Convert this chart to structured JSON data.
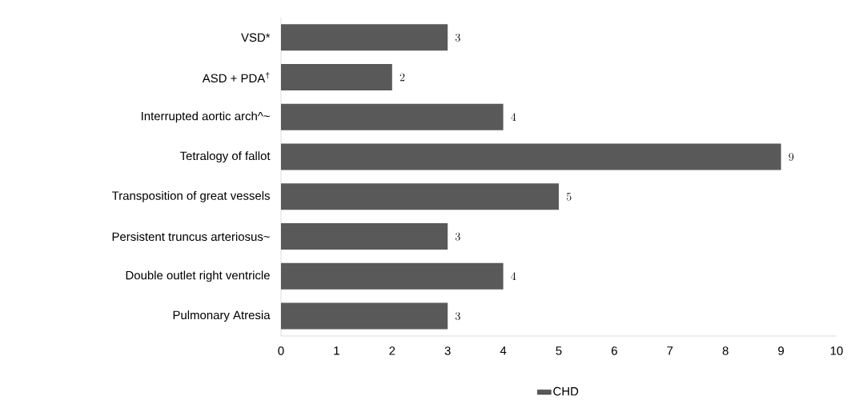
{
  "chart_data": {
    "type": "bar",
    "orientation": "horizontal",
    "categories": [
      "VSD*",
      "ASD + PDA$^{†}$",
      "Interrupted aortic arch^~",
      "Tetralogy of fallot",
      "Transposition of great vessels",
      "Persistent truncus arteriosus~",
      "Double outlet right ventricle",
      "Pulmonary Atresia"
    ],
    "series": [
      {
        "name": "CHD",
        "color": "#595959",
        "values": [
          3,
          2,
          4,
          9,
          5,
          3,
          4,
          3
        ]
      }
    ],
    "xlim": [
      0,
      10
    ],
    "xticks": [
      0,
      1,
      2,
      3,
      4,
      5,
      6,
      7,
      8,
      9,
      10
    ],
    "data_labels": true,
    "grid": false,
    "legend": "bottom"
  }
}
